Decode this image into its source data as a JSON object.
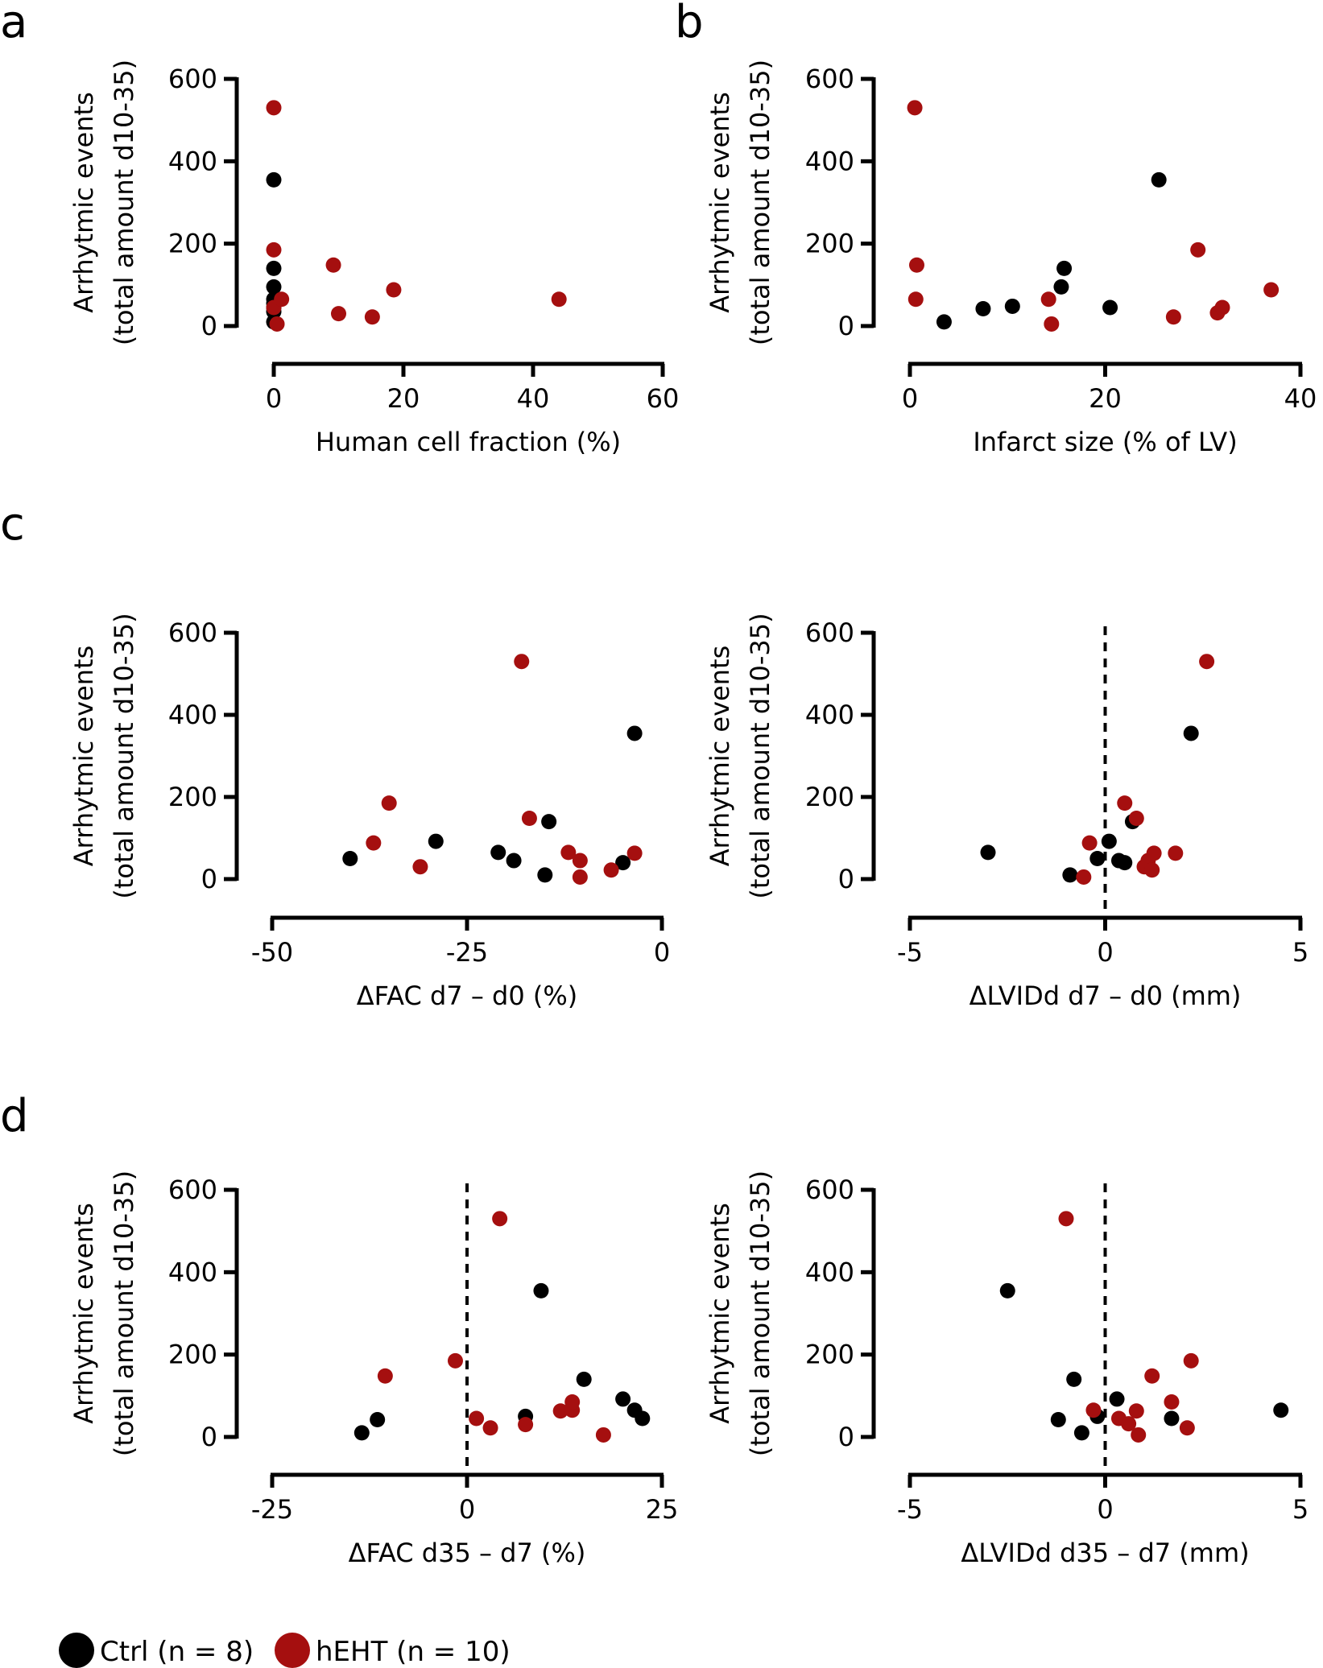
{
  "colors": {
    "ctrl": "#000000",
    "hEHT": "#a50f0f",
    "axis": "#000000"
  },
  "legend": {
    "ctrl_label": "Ctrl (n = 8)",
    "hEHT_label": "hEHT (n = 10)"
  },
  "chart_data": [
    {
      "id": "a",
      "panel_label": "a",
      "type": "scatter",
      "xlabel": "Human cell fraction (%)",
      "ylabel_line1": "Arrhytmic events",
      "ylabel_line2": "(total amount d10-35)",
      "xlim": [
        0,
        60
      ],
      "ylim": [
        0,
        600
      ],
      "xticks": [
        0,
        20,
        40,
        60
      ],
      "xtick_labels": [
        "0",
        "20",
        "40",
        "60"
      ],
      "yticks": [
        0,
        200,
        400,
        600
      ],
      "ytick_labels": [
        "0",
        "200",
        "400",
        "600"
      ],
      "zero_line": false,
      "series": [
        {
          "name": "Ctrl",
          "points": [
            [
              0,
              355
            ],
            [
              0,
              140
            ],
            [
              0,
              95
            ],
            [
              0,
              65
            ],
            [
              0,
              45
            ],
            [
              0,
              10
            ],
            [
              0,
              35
            ],
            [
              0,
              55
            ]
          ]
        },
        {
          "name": "hEHT",
          "points": [
            [
              0,
              530
            ],
            [
              0,
              185
            ],
            [
              0,
              45
            ],
            [
              0.5,
              5
            ],
            [
              1.2,
              65
            ],
            [
              9.2,
              148
            ],
            [
              10,
              30
            ],
            [
              15.2,
              22
            ],
            [
              18.5,
              88
            ],
            [
              44,
              65
            ]
          ]
        }
      ]
    },
    {
      "id": "b",
      "panel_label": "b",
      "type": "scatter",
      "xlabel": "Infarct size (% of LV)",
      "ylabel_line1": "Arrhytmic events",
      "ylabel_line2": "(total amount d10-35)",
      "xlim": [
        0,
        40
      ],
      "ylim": [
        0,
        600
      ],
      "xticks": [
        0,
        20,
        40
      ],
      "xtick_labels": [
        "0",
        "20",
        "40"
      ],
      "yticks": [
        0,
        200,
        400,
        600
      ],
      "ytick_labels": [
        "0",
        "200",
        "400",
        "600"
      ],
      "zero_line": false,
      "series": [
        {
          "name": "Ctrl",
          "points": [
            [
              3.5,
              10
            ],
            [
              7.5,
              42
            ],
            [
              10.5,
              48
            ],
            [
              15.5,
              95
            ],
            [
              15.8,
              140
            ],
            [
              20.5,
              45
            ],
            [
              25.5,
              355
            ]
          ]
        },
        {
          "name": "hEHT",
          "points": [
            [
              0.5,
              530
            ],
            [
              0.7,
              148
            ],
            [
              0.6,
              65
            ],
            [
              14.2,
              65
            ],
            [
              14.5,
              5
            ],
            [
              27,
              22
            ],
            [
              29.5,
              185
            ],
            [
              31.5,
              32
            ],
            [
              32,
              45
            ],
            [
              37,
              88
            ]
          ]
        }
      ]
    },
    {
      "id": "c1",
      "panel_label": "c",
      "type": "scatter",
      "xlabel": "ΔFAC d7 – d0 (%)",
      "ylabel_line1": "Arrhytmic events",
      "ylabel_line2": "(total amount d10-35)",
      "xlim": [
        -50,
        0
      ],
      "ylim": [
        0,
        600
      ],
      "xticks": [
        -50,
        -25,
        0
      ],
      "xtick_labels": [
        "-50",
        "-25",
        "0"
      ],
      "yticks": [
        0,
        200,
        400,
        600
      ],
      "ytick_labels": [
        "0",
        "200",
        "400",
        "600"
      ],
      "zero_line": false,
      "series": [
        {
          "name": "Ctrl",
          "points": [
            [
              -40,
              50
            ],
            [
              -29,
              92
            ],
            [
              -21,
              65
            ],
            [
              -19,
              45
            ],
            [
              -15,
              10
            ],
            [
              -14.5,
              140
            ],
            [
              -5,
              40
            ],
            [
              -3.5,
              355
            ]
          ]
        },
        {
          "name": "hEHT",
          "points": [
            [
              -37,
              88
            ],
            [
              -35,
              185
            ],
            [
              -31,
              30
            ],
            [
              -18,
              530
            ],
            [
              -17,
              148
            ],
            [
              -12,
              65
            ],
            [
              -10.5,
              45
            ],
            [
              -10.5,
              5
            ],
            [
              -6.5,
              22
            ],
            [
              -3.5,
              63
            ]
          ]
        }
      ]
    },
    {
      "id": "c2",
      "panel_label": "",
      "type": "scatter",
      "xlabel": "ΔLVIDd d7 – d0 (mm)",
      "ylabel_line1": "Arrhytmic events",
      "ylabel_line2": "(total amount d10-35)",
      "xlim": [
        -5,
        5
      ],
      "ylim": [
        0,
        600
      ],
      "xticks": [
        -5,
        0,
        5
      ],
      "xtick_labels": [
        "-5",
        "0",
        "5"
      ],
      "yticks": [
        0,
        200,
        400,
        600
      ],
      "ytick_labels": [
        "0",
        "200",
        "400",
        "600"
      ],
      "zero_line": true,
      "series": [
        {
          "name": "Ctrl",
          "points": [
            [
              -3,
              65
            ],
            [
              -0.9,
              10
            ],
            [
              -0.2,
              50
            ],
            [
              0.1,
              92
            ],
            [
              0.35,
              45
            ],
            [
              0.5,
              40
            ],
            [
              0.7,
              140
            ],
            [
              2.2,
              355
            ]
          ]
        },
        {
          "name": "hEHT",
          "points": [
            [
              -0.55,
              5
            ],
            [
              -0.4,
              88
            ],
            [
              0.5,
              185
            ],
            [
              0.8,
              148
            ],
            [
              1,
              30
            ],
            [
              1.1,
              45
            ],
            [
              1.2,
              22
            ],
            [
              1.25,
              63
            ],
            [
              1.8,
              63
            ],
            [
              2.6,
              530
            ]
          ]
        }
      ]
    },
    {
      "id": "d1",
      "panel_label": "d",
      "type": "scatter",
      "xlabel": "ΔFAC d35 – d7 (%)",
      "ylabel_line1": "Arrhytmic events",
      "ylabel_line2": "(total amount d10-35)",
      "xlim": [
        -25,
        25
      ],
      "ylim": [
        0,
        600
      ],
      "xticks": [
        -25,
        0,
        25
      ],
      "xtick_labels": [
        "-25",
        "0",
        "25"
      ],
      "yticks": [
        0,
        200,
        400,
        600
      ],
      "ytick_labels": [
        "0",
        "200",
        "400",
        "600"
      ],
      "zero_line": true,
      "series": [
        {
          "name": "Ctrl",
          "points": [
            [
              -13.5,
              10
            ],
            [
              -11.5,
              42
            ],
            [
              7.5,
              50
            ],
            [
              9.5,
              355
            ],
            [
              15,
              140
            ],
            [
              20,
              92
            ],
            [
              21.5,
              65
            ],
            [
              22.5,
              45
            ]
          ]
        },
        {
          "name": "hEHT",
          "points": [
            [
              -10.5,
              148
            ],
            [
              -1.5,
              185
            ],
            [
              1.2,
              45
            ],
            [
              3,
              22
            ],
            [
              4.2,
              530
            ],
            [
              7.5,
              30
            ],
            [
              12,
              63
            ],
            [
              13.5,
              65
            ],
            [
              13.5,
              85
            ],
            [
              17.5,
              5
            ]
          ]
        }
      ]
    },
    {
      "id": "d2",
      "panel_label": "",
      "type": "scatter",
      "xlabel": "ΔLVIDd d35 – d7 (mm)",
      "ylabel_line1": "Arrhytmic events",
      "ylabel_line2": "(total amount d10-35)",
      "xlim": [
        -5,
        5
      ],
      "ylim": [
        0,
        600
      ],
      "xticks": [
        -5,
        0,
        5
      ],
      "xtick_labels": [
        "-5",
        "0",
        "5"
      ],
      "yticks": [
        0,
        200,
        400,
        600
      ],
      "ytick_labels": [
        "0",
        "200",
        "400",
        "600"
      ],
      "zero_line": true,
      "series": [
        {
          "name": "Ctrl",
          "points": [
            [
              -2.5,
              355
            ],
            [
              -1.2,
              42
            ],
            [
              -0.8,
              140
            ],
            [
              -0.6,
              10
            ],
            [
              -0.2,
              50
            ],
            [
              0.3,
              92
            ],
            [
              1.7,
              45
            ],
            [
              4.5,
              65
            ]
          ]
        },
        {
          "name": "hEHT",
          "points": [
            [
              -1,
              530
            ],
            [
              -0.3,
              65
            ],
            [
              0.35,
              45
            ],
            [
              0.6,
              32
            ],
            [
              0.8,
              63
            ],
            [
              0.85,
              5
            ],
            [
              1.2,
              148
            ],
            [
              1.7,
              85
            ],
            [
              2.1,
              22
            ],
            [
              2.2,
              185
            ]
          ]
        }
      ]
    }
  ]
}
